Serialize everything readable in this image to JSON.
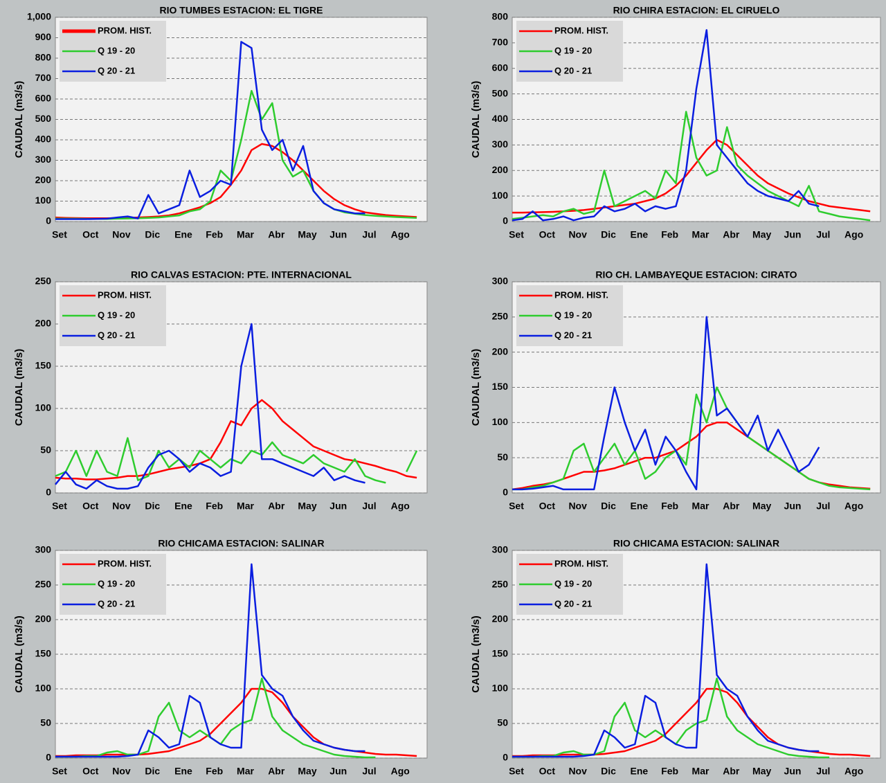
{
  "chart_data": [
    {
      "type": "line",
      "title": "RIO TUMBES  ESTACION:  EL TIGRE",
      "y_label": "CAUDAL  (m3/s)",
      "categories": [
        "Set",
        null,
        null,
        "Oct",
        null,
        null,
        "Nov",
        null,
        null,
        "Dic",
        null,
        null,
        "Ene",
        null,
        null,
        "Feb",
        null,
        null,
        "Mar",
        null,
        null,
        "Abr",
        null,
        null,
        "May",
        null,
        null,
        "Jun",
        null,
        null,
        "Jul",
        null,
        null,
        "Ago",
        null,
        null
      ],
      "ylim": [
        0,
        1000
      ],
      "yticks": [
        0,
        100,
        200,
        300,
        400,
        500,
        600,
        700,
        800,
        900,
        {
          "value": 1000,
          "label": "1,000"
        }
      ],
      "grid": true,
      "legend": "upper left",
      "series": [
        {
          "name": "PROM. HIST.",
          "color": "#ff0000",
          "values": [
            20,
            18,
            17,
            16,
            16,
            16,
            17,
            18,
            20,
            22,
            25,
            30,
            40,
            55,
            70,
            90,
            120,
            180,
            250,
            350,
            380,
            370,
            340,
            300,
            250,
            200,
            150,
            110,
            80,
            60,
            45,
            38,
            32,
            28,
            25,
            22
          ]
        },
        {
          "name": "Q 19 - 20",
          "color": "#2ecc2e",
          "values": [
            15,
            14,
            14,
            13,
            13,
            13,
            14,
            15,
            16,
            18,
            20,
            25,
            30,
            50,
            60,
            100,
            250,
            200,
            400,
            640,
            500,
            580,
            300,
            220,
            250,
            150,
            90,
            60,
            45,
            38,
            32,
            28,
            25,
            22,
            20,
            18
          ]
        },
        {
          "name": "Q 20 - 21",
          "color": "#0a1ee0",
          "values": [
            12,
            12,
            12,
            12,
            13,
            14,
            20,
            25,
            15,
            130,
            40,
            60,
            80,
            250,
            120,
            150,
            200,
            180,
            880,
            850,
            450,
            350,
            400,
            250,
            370,
            150,
            90,
            60,
            50,
            40,
            40,
            null,
            null,
            null,
            null,
            null
          ]
        }
      ]
    },
    {
      "type": "line",
      "title": "RIO CHIRA  ESTACION:  EL CIRUELO",
      "y_label": "CAUDAL  (m3/s)",
      "categories": [
        "Set",
        null,
        null,
        "Oct",
        null,
        null,
        "Nov",
        null,
        null,
        "Dic",
        null,
        null,
        "Ene",
        null,
        null,
        "Feb",
        null,
        null,
        "Mar",
        null,
        null,
        "Abr",
        null,
        null,
        "May",
        null,
        null,
        "Jun",
        null,
        null,
        "Jul",
        null,
        null,
        "Ago",
        null,
        null
      ],
      "ylim": [
        0,
        800
      ],
      "yticks": [
        0,
        100,
        200,
        300,
        400,
        500,
        600,
        700,
        800
      ],
      "grid": true,
      "legend": "upper left",
      "series": [
        {
          "name": "PROM. HIST.",
          "color": "#ff0000",
          "values": [
            35,
            35,
            36,
            37,
            38,
            40,
            42,
            45,
            50,
            55,
            60,
            65,
            70,
            80,
            90,
            110,
            140,
            180,
            230,
            280,
            320,
            300,
            260,
            220,
            180,
            150,
            130,
            110,
            95,
            80,
            70,
            60,
            55,
            50,
            45,
            40
          ]
        },
        {
          "name": "Q 19 - 20",
          "color": "#2ecc2e",
          "values": [
            10,
            15,
            20,
            25,
            20,
            40,
            50,
            30,
            40,
            200,
            60,
            80,
            100,
            120,
            90,
            200,
            150,
            430,
            250,
            180,
            200,
            370,
            220,
            180,
            150,
            120,
            100,
            80,
            60,
            140,
            40,
            30,
            20,
            15,
            10,
            5
          ]
        },
        {
          "name": "Q 20 - 21",
          "color": "#0a1ee0",
          "values": [
            5,
            10,
            40,
            5,
            10,
            20,
            5,
            15,
            20,
            60,
            40,
            50,
            70,
            40,
            60,
            50,
            60,
            200,
            520,
            750,
            300,
            250,
            200,
            150,
            120,
            100,
            90,
            80,
            120,
            70,
            60,
            null,
            null,
            null,
            null,
            null
          ]
        }
      ]
    },
    {
      "type": "line",
      "title": "RIO CALVAS ESTACION:  PTE. INTERNACIONAL",
      "y_label": "CAUDAL (m3/s)",
      "categories": [
        "Set",
        null,
        null,
        "Oct",
        null,
        null,
        "Nov",
        null,
        null,
        "Dic",
        null,
        null,
        "Ene",
        null,
        null,
        "Feb",
        null,
        null,
        "Mar",
        null,
        null,
        "Abr",
        null,
        null,
        "May",
        null,
        null,
        "Jun",
        null,
        null,
        "Jul",
        null,
        null,
        "Ago",
        null,
        null
      ],
      "ylim": [
        0,
        250
      ],
      "yticks": [
        0,
        50,
        100,
        150,
        200,
        250
      ],
      "grid": true,
      "legend": "upper left",
      "series": [
        {
          "name": "PROM. HIST.",
          "color": "#ff0000",
          "values": [
            18,
            17,
            17,
            16,
            16,
            17,
            18,
            20,
            20,
            22,
            25,
            28,
            30,
            32,
            35,
            40,
            60,
            85,
            80,
            100,
            110,
            100,
            85,
            75,
            65,
            55,
            50,
            45,
            40,
            38,
            35,
            32,
            28,
            25,
            20,
            18
          ]
        },
        {
          "name": "Q 19 - 20",
          "color": "#2ecc2e",
          "values": [
            20,
            25,
            50,
            20,
            50,
            25,
            20,
            65,
            15,
            20,
            50,
            30,
            40,
            30,
            50,
            40,
            30,
            40,
            35,
            50,
            45,
            60,
            45,
            40,
            35,
            45,
            35,
            30,
            25,
            40,
            20,
            15,
            12,
            null,
            25,
            50
          ]
        },
        {
          "name": "Q 20 - 21",
          "color": "#0a1ee0",
          "values": [
            10,
            25,
            10,
            5,
            15,
            8,
            5,
            5,
            8,
            30,
            45,
            50,
            40,
            25,
            35,
            30,
            20,
            25,
            150,
            200,
            40,
            40,
            35,
            30,
            25,
            20,
            30,
            15,
            20,
            15,
            12,
            null,
            null,
            null,
            null,
            null
          ]
        }
      ]
    },
    {
      "type": "line",
      "title": "RIO CH. LAMBAYEQUE  ESTACION:  CIRATO",
      "y_label": "CAUDAL  (m3/s)",
      "categories": [
        "Set",
        null,
        null,
        "Oct",
        null,
        null,
        "Nov",
        null,
        null,
        "Dic",
        null,
        null,
        "Ene",
        null,
        null,
        "Feb",
        null,
        null,
        "Mar",
        null,
        null,
        "Abr",
        null,
        null,
        "May",
        null,
        null,
        "Jun",
        null,
        null,
        "Jul",
        null,
        null,
        "Ago",
        null,
        null
      ],
      "ylim": [
        0,
        300
      ],
      "yticks": [
        0,
        50,
        100,
        150,
        200,
        250,
        300
      ],
      "grid": true,
      "legend": "upper left",
      "series": [
        {
          "name": "PROM. HIST.",
          "color": "#ff0000",
          "values": [
            5,
            7,
            10,
            12,
            15,
            20,
            25,
            30,
            30,
            32,
            35,
            40,
            45,
            50,
            50,
            55,
            60,
            70,
            80,
            95,
            100,
            100,
            90,
            80,
            70,
            60,
            50,
            40,
            30,
            20,
            15,
            12,
            10,
            8,
            7,
            6
          ]
        },
        {
          "name": "Q 19 - 20",
          "color": "#2ecc2e",
          "values": [
            5,
            5,
            8,
            10,
            15,
            20,
            60,
            70,
            30,
            50,
            70,
            40,
            60,
            20,
            30,
            50,
            60,
            40,
            140,
            100,
            150,
            120,
            100,
            80,
            70,
            60,
            50,
            40,
            30,
            20,
            15,
            10,
            8,
            7,
            6,
            5
          ]
        },
        {
          "name": "Q 20 - 21",
          "color": "#0a1ee0",
          "values": [
            5,
            5,
            6,
            8,
            10,
            5,
            5,
            5,
            5,
            80,
            150,
            100,
            60,
            90,
            40,
            80,
            60,
            30,
            5,
            250,
            110,
            120,
            100,
            80,
            110,
            60,
            90,
            60,
            30,
            40,
            65,
            null,
            null,
            null,
            null,
            null
          ]
        }
      ]
    },
    {
      "type": "line",
      "title": "RIO CHICAMA  ESTACION:  SALINAR",
      "y_label": "CAUDAL (m3/s)",
      "categories": [
        "Set",
        null,
        null,
        "Oct",
        null,
        null,
        "Nov",
        null,
        null,
        "Dic",
        null,
        null,
        "Ene",
        null,
        null,
        "Feb",
        null,
        null,
        "Mar",
        null,
        null,
        "Abr",
        null,
        null,
        "May",
        null,
        null,
        "Jun",
        null,
        null,
        "Jul",
        null,
        null,
        "Ago",
        null,
        null
      ],
      "ylim": [
        0,
        300
      ],
      "yticks": [
        0,
        50,
        100,
        150,
        200,
        250,
        300
      ],
      "grid": true,
      "legend": "upper left",
      "series": [
        {
          "name": "PROM. HIST.",
          "color": "#ff0000",
          "values": [
            3,
            3,
            4,
            4,
            4,
            5,
            5,
            5,
            5,
            6,
            8,
            10,
            15,
            20,
            25,
            35,
            50,
            65,
            80,
            100,
            100,
            95,
            80,
            60,
            45,
            30,
            20,
            15,
            12,
            10,
            8,
            6,
            5,
            5,
            4,
            3
          ]
        },
        {
          "name": "Q 19 - 20",
          "color": "#2ecc2e",
          "values": [
            2,
            2,
            2,
            3,
            3,
            8,
            10,
            5,
            5,
            10,
            60,
            80,
            40,
            30,
            40,
            30,
            20,
            40,
            50,
            55,
            115,
            60,
            40,
            30,
            20,
            15,
            10,
            5,
            3,
            2,
            1,
            1,
            null,
            null,
            null,
            null
          ]
        },
        {
          "name": "Q 20 - 21",
          "color": "#0a1ee0",
          "values": [
            2,
            2,
            2,
            2,
            2,
            2,
            2,
            3,
            5,
            40,
            30,
            15,
            20,
            90,
            80,
            30,
            20,
            15,
            15,
            280,
            120,
            100,
            90,
            60,
            40,
            25,
            20,
            15,
            12,
            10,
            10,
            null,
            null,
            null,
            null,
            null
          ]
        }
      ]
    },
    {
      "type": "line",
      "title": "RIO CHICAMA  ESTACION:  SALINAR",
      "y_label": "CAUDAL (m3/s)",
      "categories": [
        "Set",
        null,
        null,
        "Oct",
        null,
        null,
        "Nov",
        null,
        null,
        "Dic",
        null,
        null,
        "Ene",
        null,
        null,
        "Feb",
        null,
        null,
        "Mar",
        null,
        null,
        "Abr",
        null,
        null,
        "May",
        null,
        null,
        "Jun",
        null,
        null,
        "Jul",
        null,
        null,
        "Ago",
        null,
        null
      ],
      "ylim": [
        0,
        300
      ],
      "yticks": [
        0,
        50,
        100,
        150,
        200,
        250,
        300
      ],
      "grid": true,
      "legend": "upper left",
      "series": [
        {
          "name": "PROM. HIST.",
          "color": "#ff0000",
          "values": [
            3,
            3,
            4,
            4,
            4,
            5,
            5,
            5,
            5,
            6,
            8,
            10,
            15,
            20,
            25,
            35,
            50,
            65,
            80,
            100,
            100,
            95,
            80,
            60,
            45,
            30,
            20,
            15,
            12,
            10,
            8,
            6,
            5,
            5,
            4,
            3
          ]
        },
        {
          "name": "Q 19 - 20",
          "color": "#2ecc2e",
          "values": [
            2,
            2,
            2,
            3,
            3,
            8,
            10,
            5,
            5,
            10,
            60,
            80,
            40,
            30,
            40,
            30,
            20,
            40,
            50,
            55,
            115,
            60,
            40,
            30,
            20,
            15,
            10,
            5,
            3,
            2,
            1,
            1,
            null,
            null,
            null,
            null
          ]
        },
        {
          "name": "Q 20 - 21",
          "color": "#0a1ee0",
          "values": [
            2,
            2,
            2,
            2,
            2,
            2,
            2,
            3,
            5,
            40,
            30,
            15,
            20,
            90,
            80,
            30,
            20,
            15,
            15,
            280,
            120,
            100,
            90,
            60,
            40,
            25,
            20,
            15,
            12,
            10,
            10,
            null,
            null,
            null,
            null,
            null
          ]
        }
      ]
    }
  ]
}
